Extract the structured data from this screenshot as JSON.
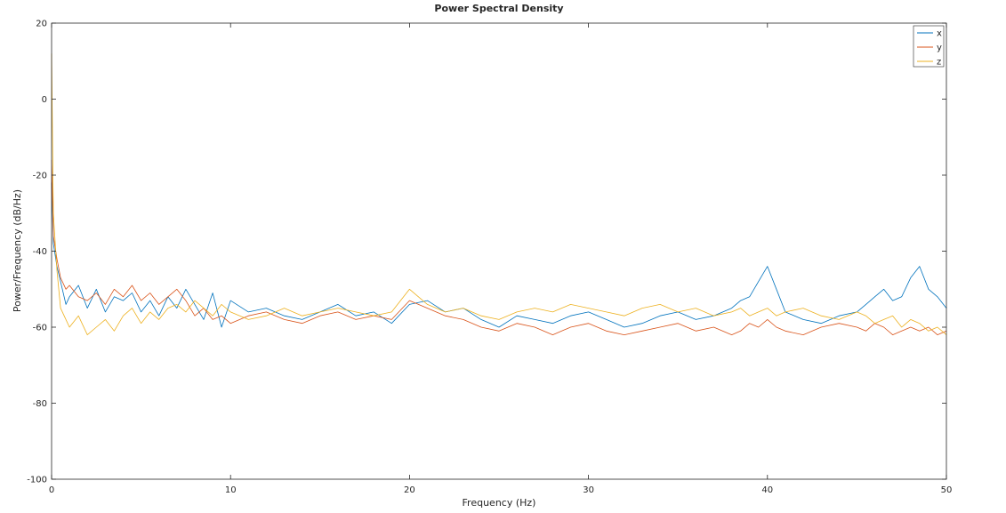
{
  "chart_data": {
    "type": "line",
    "title": "Power Spectral Density",
    "xlabel": "Frequency (Hz)",
    "ylabel": "Power/Frequency (dB/Hz)",
    "xlim": [
      0,
      50
    ],
    "ylim": [
      -100,
      20
    ],
    "xticks": [
      0,
      10,
      20,
      30,
      40,
      50
    ],
    "yticks": [
      20,
      0,
      -20,
      -40,
      -60,
      -80,
      -100
    ],
    "grid": false,
    "legend": "top-right",
    "series": [
      {
        "name": "x",
        "color": "#0072BD",
        "x": [
          0,
          0.1,
          0.3,
          0.5,
          0.8,
          1,
          1.5,
          2,
          2.5,
          3,
          3.5,
          4,
          4.5,
          5,
          5.5,
          6,
          6.5,
          7,
          7.5,
          8,
          8.5,
          9,
          9.5,
          10,
          11,
          12,
          13,
          14,
          15,
          16,
          17,
          18,
          19,
          20,
          21,
          22,
          23,
          24,
          25,
          26,
          27,
          28,
          29,
          30,
          31,
          32,
          33,
          34,
          35,
          36,
          37,
          38,
          38.5,
          39,
          39.5,
          40,
          40.5,
          41,
          42,
          43,
          44,
          45,
          45.5,
          46,
          46.5,
          47,
          47.5,
          48,
          48.5,
          49,
          49.5,
          50
        ],
        "y": [
          -22,
          -38,
          -44,
          -48,
          -54,
          -52,
          -49,
          -55,
          -50,
          -56,
          -52,
          -53,
          -51,
          -56,
          -53,
          -57,
          -52,
          -55,
          -50,
          -54,
          -58,
          -51,
          -60,
          -53,
          -56,
          -55,
          -57,
          -58,
          -56,
          -54,
          -57,
          -56,
          -59,
          -54,
          -53,
          -56,
          -55,
          -58,
          -60,
          -57,
          -58,
          -59,
          -57,
          -56,
          -58,
          -60,
          -59,
          -57,
          -56,
          -58,
          -57,
          -55,
          -53,
          -52,
          -48,
          -44,
          -50,
          -56,
          -58,
          -59,
          -57,
          -56,
          -54,
          -52,
          -50,
          -53,
          -52,
          -47,
          -44,
          -50,
          -52,
          -55
        ]
      },
      {
        "name": "y",
        "color": "#D95319",
        "x": [
          0,
          0.1,
          0.3,
          0.5,
          0.8,
          1,
          1.5,
          2,
          2.5,
          3,
          3.5,
          4,
          4.5,
          5,
          5.5,
          6,
          6.5,
          7,
          7.5,
          8,
          8.5,
          9,
          9.5,
          10,
          11,
          12,
          13,
          14,
          15,
          16,
          17,
          18,
          19,
          20,
          21,
          22,
          23,
          24,
          25,
          26,
          27,
          28,
          29,
          30,
          31,
          32,
          33,
          34,
          35,
          36,
          37,
          38,
          38.5,
          39,
          39.5,
          40,
          40.5,
          41,
          42,
          43,
          44,
          45,
          45.5,
          46,
          46.5,
          47,
          47.5,
          48,
          48.5,
          49,
          49.5,
          50
        ],
        "y": [
          -16,
          -36,
          -42,
          -47,
          -50,
          -49,
          -52,
          -53,
          -51,
          -54,
          -50,
          -52,
          -49,
          -53,
          -51,
          -54,
          -52,
          -50,
          -53,
          -57,
          -55,
          -58,
          -57,
          -59,
          -57,
          -56,
          -58,
          -59,
          -57,
          -56,
          -58,
          -57,
          -58,
          -53,
          -55,
          -57,
          -58,
          -60,
          -61,
          -59,
          -60,
          -62,
          -60,
          -59,
          -61,
          -62,
          -61,
          -60,
          -59,
          -61,
          -60,
          -62,
          -61,
          -59,
          -60,
          -58,
          -60,
          -61,
          -62,
          -60,
          -59,
          -60,
          -61,
          -59,
          -60,
          -62,
          -61,
          -60,
          -61,
          -60,
          -62,
          -61
        ]
      },
      {
        "name": "z",
        "color": "#EDB120",
        "x": [
          0,
          0.1,
          0.3,
          0.5,
          0.8,
          1,
          1.5,
          2,
          2.5,
          3,
          3.5,
          4,
          4.5,
          5,
          5.5,
          6,
          6.5,
          7,
          7.5,
          8,
          8.5,
          9,
          9.5,
          10,
          11,
          12,
          13,
          14,
          15,
          16,
          17,
          18,
          19,
          20,
          21,
          22,
          23,
          24,
          25,
          26,
          27,
          28,
          29,
          30,
          31,
          32,
          33,
          34,
          35,
          36,
          37,
          38,
          38.5,
          39,
          39.5,
          40,
          40.5,
          41,
          42,
          43,
          44,
          45,
          45.5,
          46,
          46.5,
          47,
          47.5,
          48,
          48.5,
          49,
          49.5,
          50
        ],
        "y": [
          12,
          -30,
          -45,
          -55,
          -58,
          -60,
          -57,
          -62,
          -60,
          -58,
          -61,
          -57,
          -55,
          -59,
          -56,
          -58,
          -55,
          -54,
          -56,
          -53,
          -55,
          -57,
          -54,
          -56,
          -58,
          -57,
          -55,
          -57,
          -56,
          -55,
          -56,
          -57,
          -56,
          -50,
          -54,
          -56,
          -55,
          -57,
          -58,
          -56,
          -55,
          -56,
          -54,
          -55,
          -56,
          -57,
          -55,
          -54,
          -56,
          -55,
          -57,
          -56,
          -55,
          -57,
          -56,
          -55,
          -57,
          -56,
          -55,
          -57,
          -58,
          -56,
          -57,
          -59,
          -58,
          -57,
          -60,
          -58,
          -59,
          -61,
          -60,
          -62
        ]
      }
    ]
  }
}
